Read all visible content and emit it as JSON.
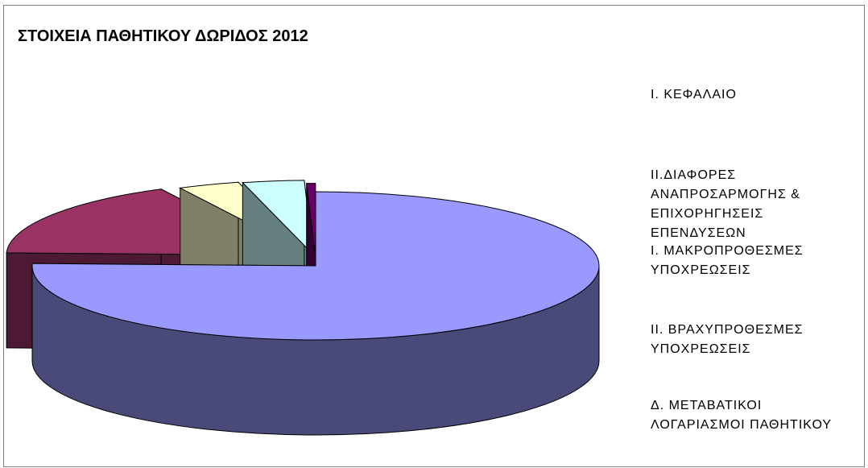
{
  "chart_data": {
    "type": "pie",
    "title": "ΣΤΟΙΧΕΙΑ ΠΑΘΗΤΙΚΟΥ ΔΩΡΙΔΟΣ 2012",
    "categories": [
      "Ι. ΚΕΦΑΛΑΙΟ",
      "ΙΙ.ΔΙΑΦΟΡΕΣ ΑΝΑΠΡΟΣΑΡΜΟΓΗΣ & ΕΠΙΧΟΡΗΓΗΣΕΙΣ ΕΠΕΝΔΥΣΕΩΝ",
      "Ι. ΜΑΚΡΟΠΡΟΘΕΣΜΕΣ ΥΠΟΧΡΕΩΣΕΙΣ",
      "ΙΙ. ΒΡΑΧΥΠΡΟΘΕΣΜΕΣ ΥΠΟΧΡΕΩΣΕΙΣ",
      "Δ. ΜΕΤΑΒΑΤΙΚΟΙ ΛΟΓΑΡΙΑΣΜΟΙ ΠΑΘΗΤΙΚΟΥ"
    ],
    "legend_lines": [
      "Ι. ΚΕΦΑΛΑΙΟ",
      "ΙΙ.ΔΙΑΦΟΡΕΣ\nΑΝΑΠΡΟΣΑΡΜΟΓΗΣ &\nΕΠΙΧΟΡΗΓΗΣΕΙΣ\nΕΠΕΝΔΥΣΕΩΝ",
      "Ι. ΜΑΚΡΟΠΡΟΘΕΣΜΕΣ\nΥΠΟΧΡΕΩΣΕΙΣ",
      "ΙΙ. ΒΡΑΧΥΠΡΟΘΕΣΜΕΣ\nΥΠΟΧΡΕΩΣΕΙΣ",
      "Δ. ΜΕΤΑΒΑΤΙΚΟΙ\nΛΟΓΑΡΙΑΣΜΟΙ ΠΑΘΗΤΙΚΟΥ"
    ],
    "values": [
      75.5,
      17.0,
      3.5,
      3.5,
      0.5
    ],
    "unit": "percent",
    "colors": [
      "#9999ff",
      "#993366",
      "#ffffcc",
      "#ccffff",
      "#660066"
    ],
    "side_colors": [
      "#4a4a7a",
      "#4d1a33",
      "#7f7f66",
      "#667f7f",
      "#330033"
    ],
    "style": "3d-exploded",
    "legend_position": "right"
  }
}
